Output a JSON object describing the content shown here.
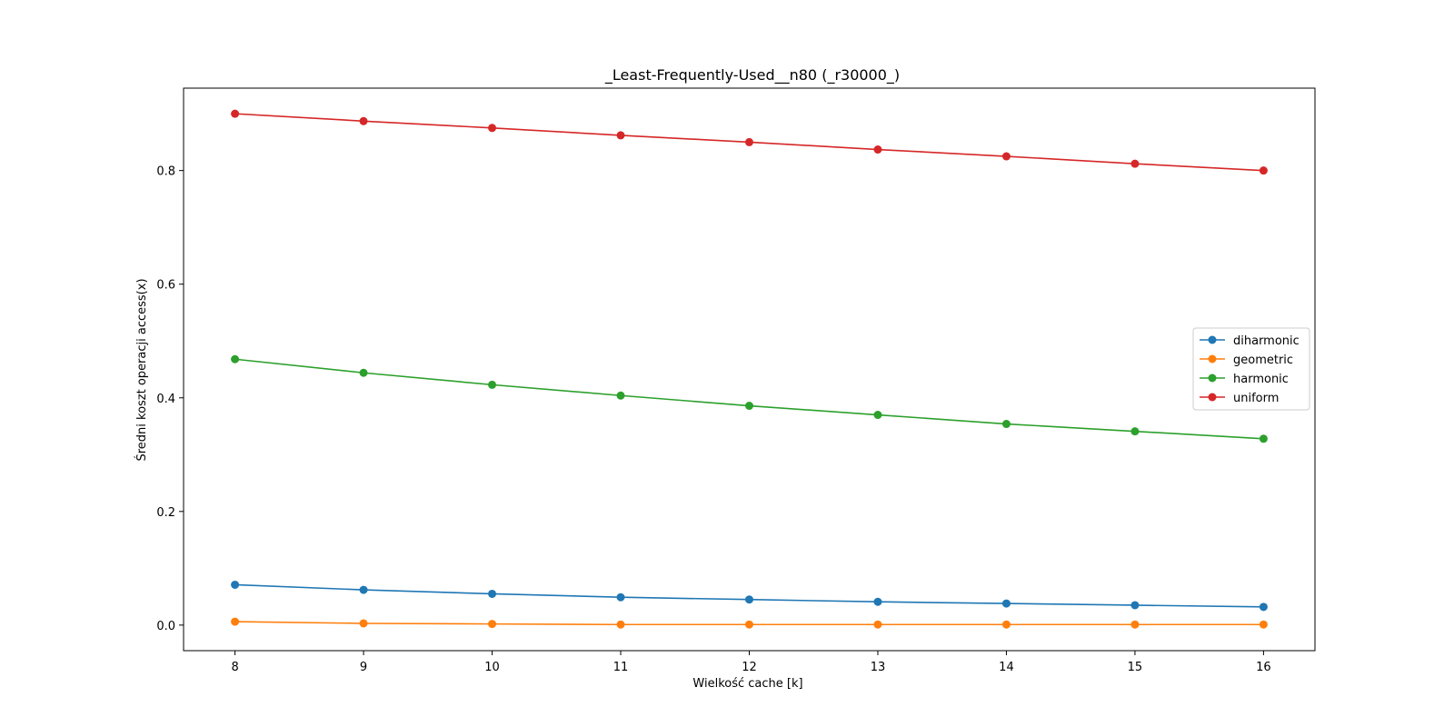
{
  "chart_data": {
    "type": "line",
    "title": "_Least-Frequently-Used__n80 (_r30000_)",
    "xlabel": "Wielkość cache [k]",
    "ylabel": "Średni koszt operacji access(x)",
    "x": [
      8,
      9,
      10,
      11,
      12,
      13,
      14,
      15,
      16
    ],
    "xticks": [
      "8",
      "9",
      "10",
      "11",
      "12",
      "13",
      "14",
      "15",
      "16"
    ],
    "yticks": [
      "0.0",
      "0.2",
      "0.4",
      "0.6",
      "0.8"
    ],
    "xlim": [
      7.6,
      16.4
    ],
    "ylim": [
      -0.045,
      0.945
    ],
    "grid": false,
    "legend_position": "center-right",
    "series": [
      {
        "name": "diharmonic",
        "color": "#1f77b4",
        "values": [
          0.071,
          0.062,
          0.055,
          0.049,
          0.045,
          0.041,
          0.038,
          0.035,
          0.032
        ]
      },
      {
        "name": "geometric",
        "color": "#ff7f0e",
        "values": [
          0.006,
          0.003,
          0.002,
          0.001,
          0.001,
          0.001,
          0.001,
          0.001,
          0.001
        ]
      },
      {
        "name": "harmonic",
        "color": "#2ca02c",
        "values": [
          0.468,
          0.444,
          0.423,
          0.404,
          0.386,
          0.37,
          0.354,
          0.341,
          0.328
        ]
      },
      {
        "name": "uniform",
        "color": "#d62728",
        "values": [
          0.9,
          0.887,
          0.875,
          0.862,
          0.85,
          0.837,
          0.825,
          0.812,
          0.8
        ]
      }
    ]
  }
}
